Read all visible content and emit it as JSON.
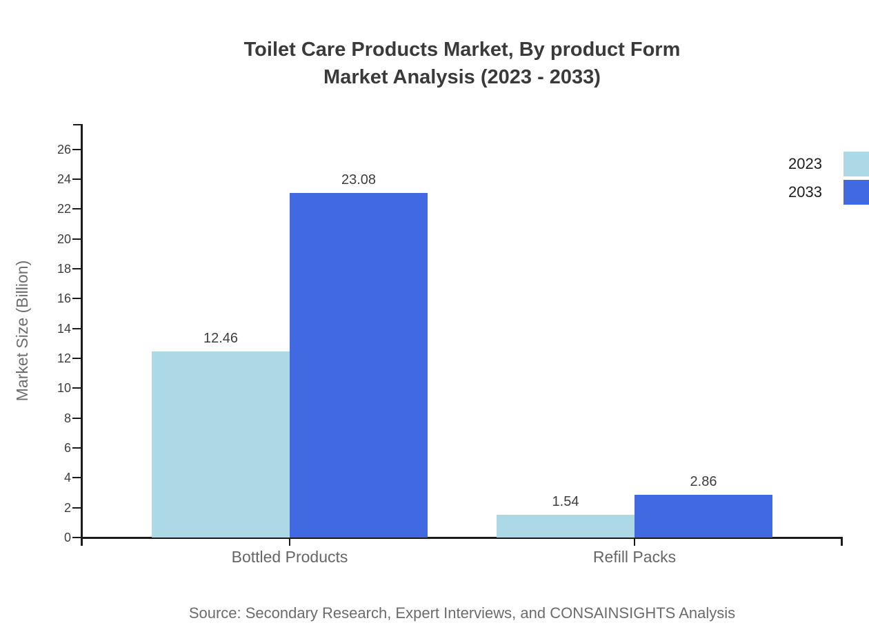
{
  "title": {
    "line1": "Toilet Care Products Market, By product Form",
    "line2": "Market Analysis (2023 - 2033)"
  },
  "source": "Source: Secondary Research, Expert Interviews, and CONSAINSIGHTS Analysis",
  "chart_data": {
    "type": "bar",
    "categories": [
      "Bottled Products",
      "Refill Packs"
    ],
    "series": [
      {
        "name": "2023",
        "color": "#ADD8E6",
        "values": [
          12.46,
          1.54
        ]
      },
      {
        "name": "2033",
        "color": "#4169E1",
        "values": [
          23.08,
          2.86
        ]
      }
    ],
    "title": "Toilet Care Products Market, By product Form Market Analysis (2023 - 2033)",
    "xlabel": "",
    "ylabel": "Market Size (Billion)",
    "ylim": [
      0,
      27.7
    ],
    "yticks": [
      0,
      2,
      4,
      6,
      8,
      10,
      12,
      14,
      16,
      18,
      20,
      22,
      24,
      26
    ],
    "grid": false,
    "legend_position": "top-right",
    "data_labels": [
      12.46,
      23.08,
      1.54,
      2.86
    ],
    "axis_color": "#1a1a1a"
  }
}
